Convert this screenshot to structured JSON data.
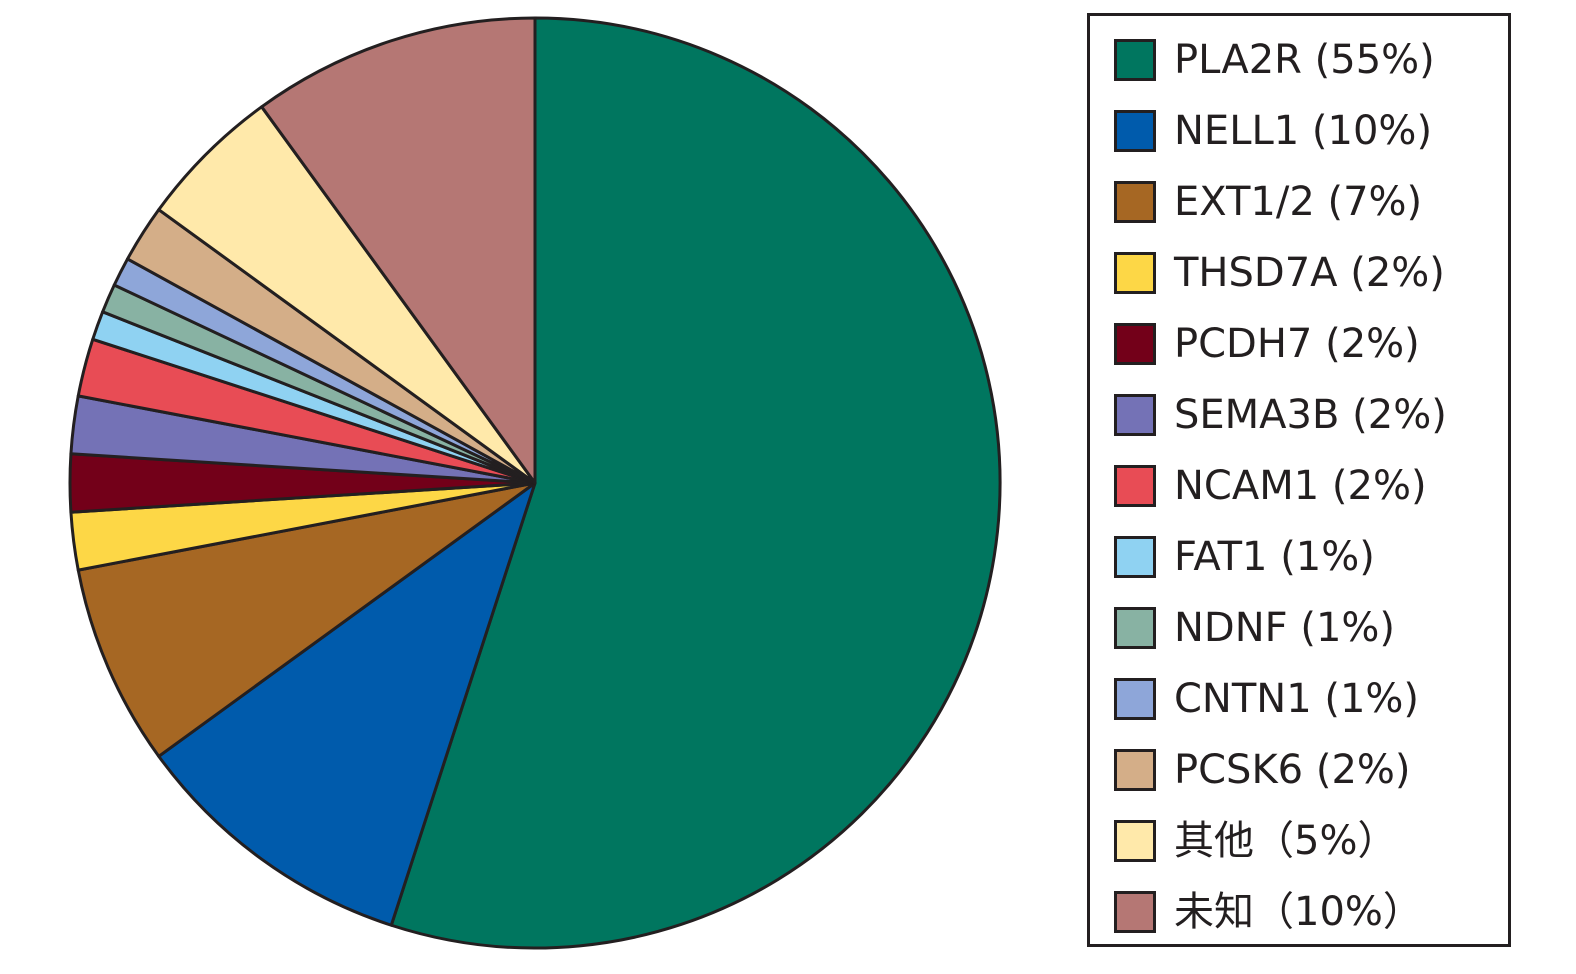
{
  "chart_data": {
    "type": "pie",
    "title": "",
    "slices": [
      {
        "label": "PLA2R (55%)",
        "value": 55,
        "color": "#00765f"
      },
      {
        "label": "NELL1 (10%)",
        "value": 10,
        "color": "#005bac"
      },
      {
        "label": "EXT1/2 (7%)",
        "value": 7,
        "color": "#a66723"
      },
      {
        "label": "THSD7A (2%)",
        "value": 2,
        "color": "#fdd746"
      },
      {
        "label": "PCDH7 (2%)",
        "value": 2,
        "color": "#730019"
      },
      {
        "label": "SEMA3B (2%)",
        "value": 2,
        "color": "#7472b6"
      },
      {
        "label": "NCAM1 (2%)",
        "value": 2,
        "color": "#e84c55"
      },
      {
        "label": "FAT1 (1%)",
        "value": 1,
        "color": "#8fd2f2"
      },
      {
        "label": "NDNF (1%)",
        "value": 1,
        "color": "#88b2a3"
      },
      {
        "label": "CNTN1 (1%)",
        "value": 1,
        "color": "#8ea6d9"
      },
      {
        "label": "PCSK6 (2%)",
        "value": 2,
        "color": "#d4ae88"
      },
      {
        "label": "其他（5%）",
        "value": 5,
        "color": "#ffe9aa"
      },
      {
        "label": "未知（10%）",
        "value": 10,
        "color": "#b57774"
      }
    ],
    "legend": "right",
    "border_color": "#231f20"
  }
}
